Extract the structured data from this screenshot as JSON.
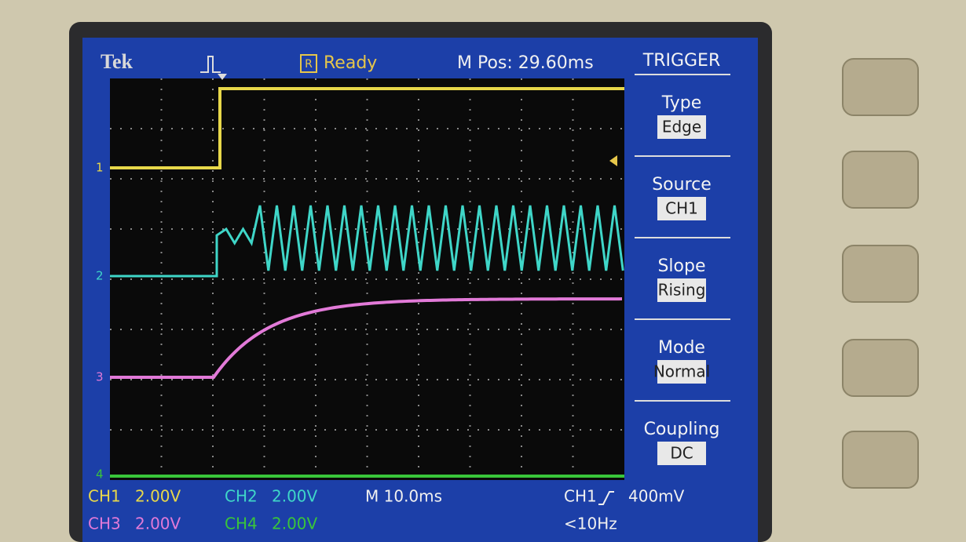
{
  "header": {
    "brand": "Tek",
    "status": "Ready",
    "position": "M Pos: 29.60ms"
  },
  "menu": {
    "title": "TRIGGER",
    "items": [
      {
        "label": "Type",
        "value": "Edge"
      },
      {
        "label": "Source",
        "value": "CH1"
      },
      {
        "label": "Slope",
        "value": "Rising"
      },
      {
        "label": "Mode",
        "value": "Normal"
      },
      {
        "label": "Coupling",
        "value": "DC"
      }
    ]
  },
  "markers": [
    "1",
    "2",
    "3",
    "4"
  ],
  "footer": {
    "channels": [
      {
        "label": "CH1",
        "scale": "2.00V"
      },
      {
        "label": "CH2",
        "scale": "2.00V"
      },
      {
        "label": "CH3",
        "scale": "2.00V"
      },
      {
        "label": "CH4",
        "scale": "2.00V"
      }
    ],
    "timebase": "M 10.0ms",
    "trigger_source": "CH1",
    "trigger_level": "400mV",
    "frequency": "<10Hz"
  }
}
